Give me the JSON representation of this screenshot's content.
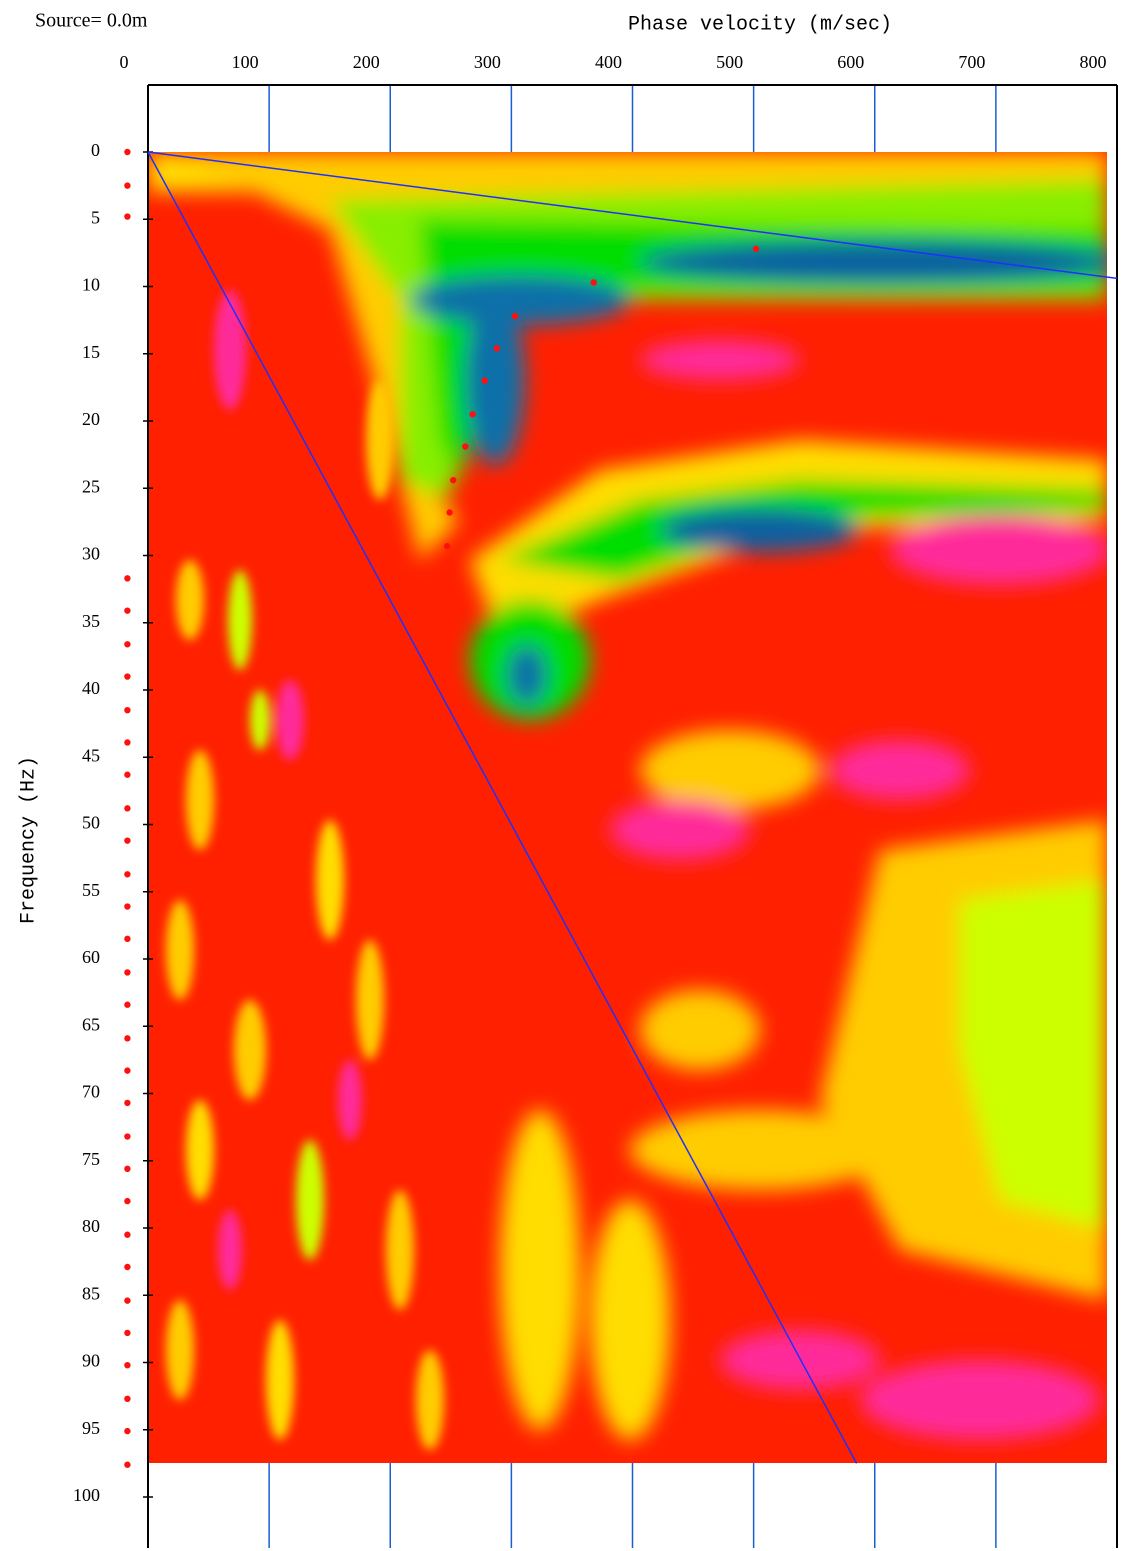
{
  "chart_data": {
    "type": "scatter",
    "source_label": "Source= 0.0m",
    "x_label": "Phase velocity (m/sec)",
    "y_label": "Frequency (Hz)",
    "x_axis_position": "top",
    "y_inverted": true,
    "xlim": [
      0,
      800
    ],
    "xticks": [
      0,
      100,
      200,
      300,
      400,
      500,
      600,
      700,
      800
    ],
    "ylim": [
      0,
      100
    ],
    "yticks": [
      0,
      5,
      10,
      15,
      20,
      25,
      30,
      35,
      40,
      45,
      50,
      55,
      60,
      65,
      70,
      75,
      80,
      85,
      90,
      95,
      100
    ],
    "grid_color": "#1a5fd0",
    "series": [
      {
        "mode": "line",
        "color": "#2030ff",
        "x": [
          0,
          800
        ],
        "values": [
          0,
          9.4
        ]
      },
      {
        "mode": "line",
        "color": "#2030ff",
        "x": [
          0,
          585
        ],
        "values": [
          0,
          97.5
        ]
      },
      {
        "mode": "markers",
        "color": "#ff1010",
        "x": [
          502,
          368,
          303,
          288,
          278,
          268,
          262,
          252,
          249,
          247
        ],
        "values": [
          7.2,
          9.7,
          12.2,
          14.6,
          17.0,
          19.5,
          21.9,
          24.4,
          26.8,
          29.3
        ]
      },
      {
        "mode": "markers",
        "color": "#ff1010",
        "x": [
          -17,
          -17,
          -17,
          -17,
          -17,
          -17,
          -17,
          -17,
          -17,
          -17,
          -17,
          -17,
          -17,
          -17,
          -17,
          -17,
          -17,
          -17,
          -17,
          -17,
          -17,
          -17,
          -17,
          -17,
          -17,
          -17,
          -17,
          -17,
          -17,
          -17,
          -17
        ],
        "values": [
          0,
          2.5,
          4.8,
          31.7,
          34.1,
          36.6,
          39.0,
          41.5,
          43.9,
          46.3,
          48.8,
          51.2,
          53.7,
          56.1,
          58.5,
          61.0,
          63.4,
          65.9,
          68.3,
          70.7,
          73.2,
          75.6,
          78.0,
          80.5,
          82.9,
          85.4,
          87.8,
          90.2,
          92.7,
          95.1,
          97.6
        ]
      }
    ]
  }
}
